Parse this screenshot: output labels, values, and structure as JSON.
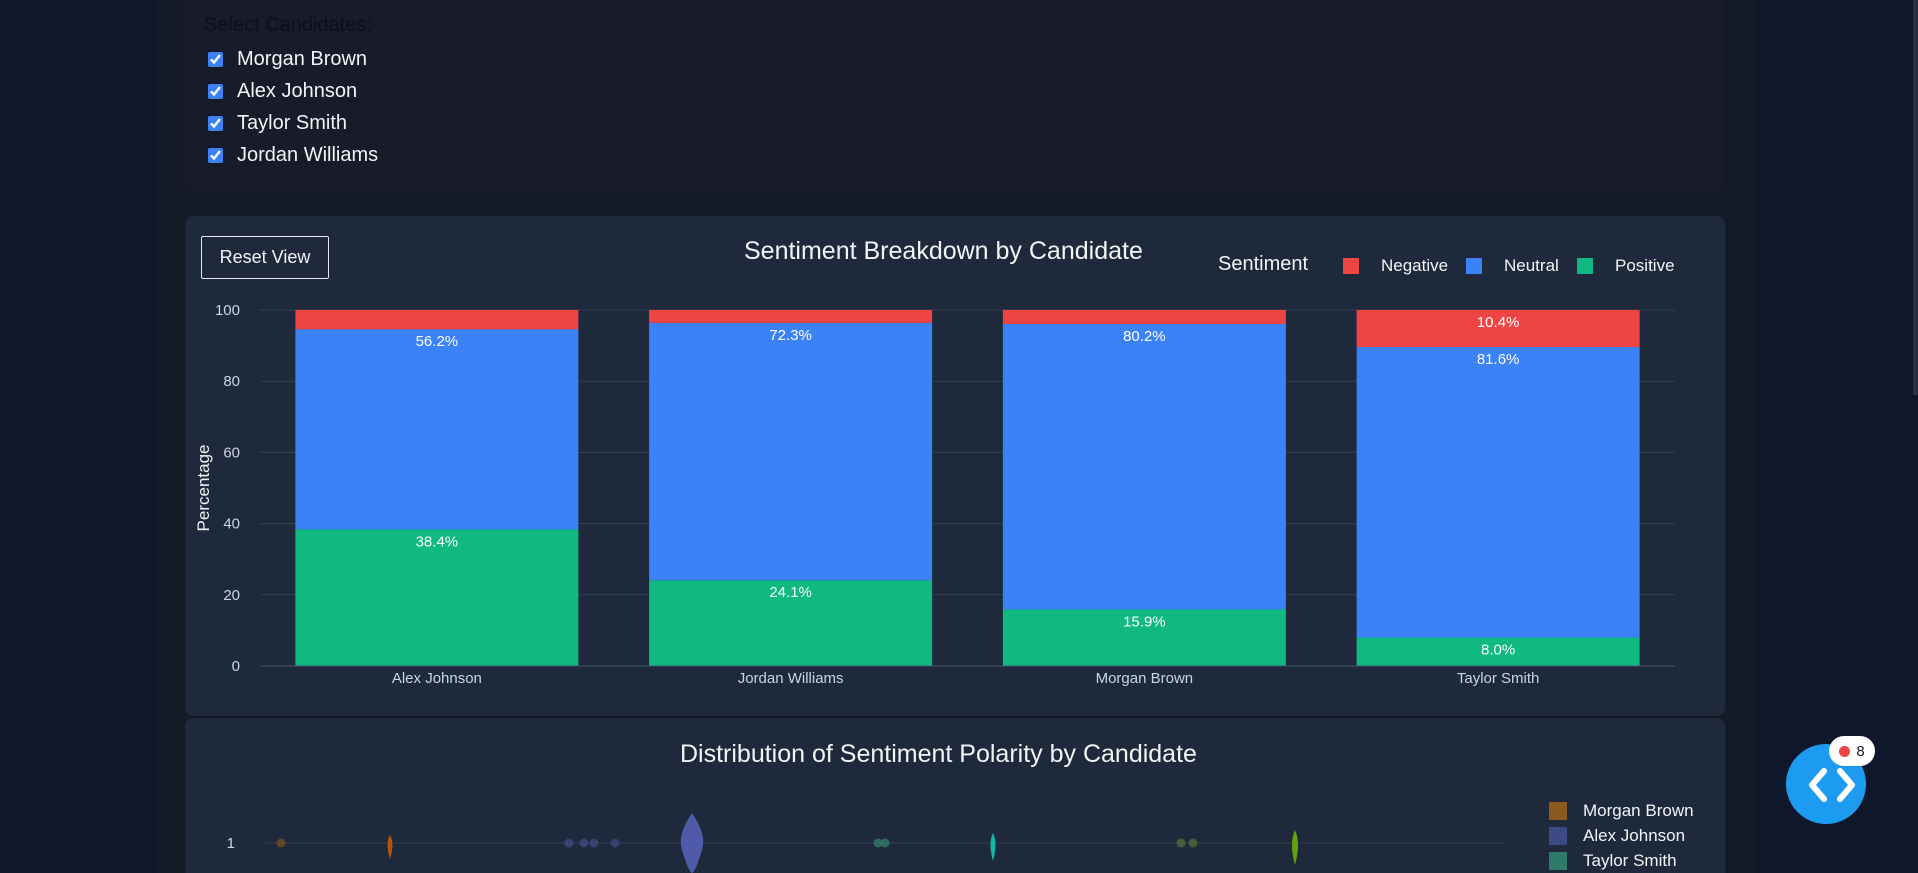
{
  "filter": {
    "title": "Select Candidates:",
    "candidates": [
      {
        "label": "Morgan Brown",
        "checked": true
      },
      {
        "label": "Alex Johnson",
        "checked": true
      },
      {
        "label": "Taylor Smith",
        "checked": true
      },
      {
        "label": "Jordan Williams",
        "checked": true
      }
    ]
  },
  "sentiment_chart": {
    "reset_label": "Reset View",
    "title": "Sentiment Breakdown by Candidate",
    "legend_title": "Sentiment",
    "legend": [
      {
        "label": "Negative",
        "color": "#ef4444"
      },
      {
        "label": "Neutral",
        "color": "#3b82f6"
      },
      {
        "label": "Positive",
        "color": "#10b981"
      }
    ]
  },
  "distribution_chart": {
    "title": "Distribution of Sentiment Polarity by Candidate",
    "legend": [
      {
        "label": "Morgan Brown",
        "color": "#8b5a1f"
      },
      {
        "label": "Alex Johnson",
        "color": "#3d4a85"
      },
      {
        "label": "Taylor Smith",
        "color": "#2f7a6b"
      }
    ]
  },
  "fab": {
    "badge_count": "8",
    "icon": "code-icon"
  },
  "chart_data": [
    {
      "type": "bar",
      "stacked": true,
      "title": "Sentiment Breakdown by Candidate",
      "categories": [
        "Alex Johnson",
        "Jordan Williams",
        "Morgan Brown",
        "Taylor Smith"
      ],
      "series": [
        {
          "name": "Positive",
          "color": "#10b981",
          "values": [
            38.4,
            24.1,
            15.9,
            8.0
          ],
          "labels": [
            "38.4%",
            "24.1%",
            "15.9%",
            "8.0%"
          ]
        },
        {
          "name": "Neutral",
          "color": "#3b82f6",
          "values": [
            56.2,
            72.3,
            80.2,
            81.6
          ],
          "labels": [
            "56.2%",
            "72.3%",
            "80.2%",
            "81.6%"
          ]
        },
        {
          "name": "Negative",
          "color": "#ef4444",
          "values": [
            5.4,
            3.6,
            3.9,
            10.4
          ],
          "labels": [
            "",
            "",
            "",
            "10.4%"
          ]
        }
      ],
      "ylabel": "Percentage",
      "ylim": [
        0,
        100
      ],
      "yticks": [
        "0",
        "20",
        "40",
        "60",
        "80",
        "100"
      ],
      "legend_title": "Sentiment",
      "legend_position": "top-right",
      "grid": true
    },
    {
      "type": "violin",
      "title": "Distribution of Sentiment Polarity by Candidate",
      "visible_ytick": "1",
      "series": [
        "Morgan Brown",
        "Alex Johnson",
        "Taylor Smith"
      ]
    }
  ]
}
